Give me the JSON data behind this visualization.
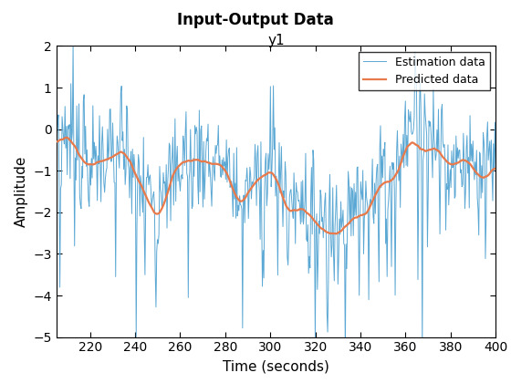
{
  "title": "Input-Output Data",
  "subtitle": "y1",
  "xlabel": "Time (seconds)",
  "ylabel": "Amplitude",
  "xlim": [
    205,
    400
  ],
  "ylim": [
    -5,
    2
  ],
  "xticks": [
    220,
    240,
    260,
    280,
    300,
    320,
    340,
    360,
    380,
    400
  ],
  "yticks": [
    -5,
    -4,
    -3,
    -2,
    -1,
    0,
    1,
    2
  ],
  "estimation_color": "#5BA8D4",
  "predicted_color": "#E8794A",
  "legend_labels": [
    "Estimation data",
    "Predicted data"
  ],
  "seed": 7,
  "n_points": 600,
  "t_start": 205,
  "t_end": 400,
  "title_fontsize": 12,
  "subtitle_fontsize": 11,
  "label_fontsize": 11,
  "tick_fontsize": 10
}
